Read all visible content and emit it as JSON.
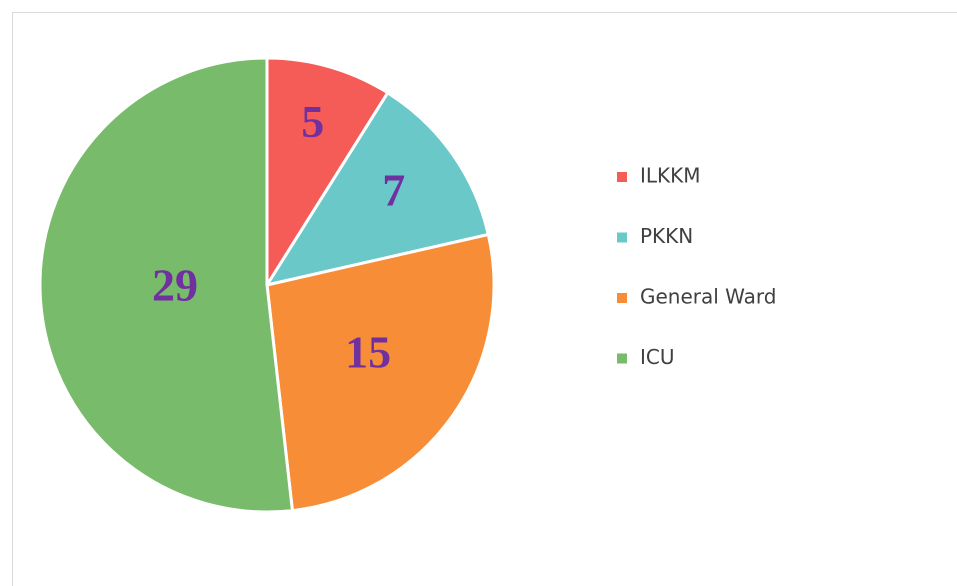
{
  "chart_data": {
    "type": "pie",
    "categories": [
      "ILKKM",
      "PKKN",
      "General Ward",
      "ICU"
    ],
    "values": [
      5,
      7,
      15,
      29
    ],
    "colors": [
      "#f55b57",
      "#6bc8c8",
      "#f88d38",
      "#77bb6b"
    ],
    "legend": "right"
  }
}
